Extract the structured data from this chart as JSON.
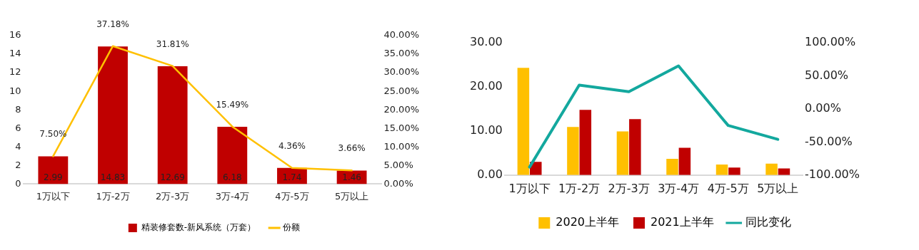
{
  "chart_data": [
    {
      "type": "bar",
      "categories": [
        "1万以下",
        "1万-2万",
        "2万-3万",
        "3万-4万",
        "4万-5万",
        "5万以上"
      ],
      "series": [
        {
          "name": "精装修套数-新风系统（万套）",
          "color": "#c00000",
          "values": [
            2.99,
            14.83,
            12.69,
            6.18,
            1.74,
            1.46
          ],
          "value_labels": [
            "2.99",
            "14.83",
            "12.69",
            "6.18",
            "1.74",
            "1.46"
          ]
        },
        {
          "name": "份额",
          "type": "line",
          "axis": "y2",
          "color": "#ffc000",
          "values": [
            7.5,
            37.18,
            31.81,
            15.49,
            4.36,
            3.66
          ],
          "value_labels": [
            "7.50%",
            "37.18%",
            "31.81%",
            "15.49%",
            "4.36%",
            "3.66%"
          ]
        }
      ],
      "ylim": [
        0,
        16
      ],
      "yticks": [
        0,
        2,
        4,
        6,
        8,
        10,
        12,
        14,
        16
      ],
      "y2lim": [
        0,
        40
      ],
      "y2ticks": [
        {
          "value": 0,
          "label": "0.00%"
        },
        {
          "value": 5,
          "label": "5.00%"
        },
        {
          "value": 10,
          "label": "10.00%"
        },
        {
          "value": 15,
          "label": "15.00%"
        },
        {
          "value": 20,
          "label": "20.00%"
        },
        {
          "value": 25,
          "label": "25.00%"
        },
        {
          "value": 30,
          "label": "30.00%"
        },
        {
          "value": 35,
          "label": "35.00%"
        },
        {
          "value": 40,
          "label": "40.00%"
        }
      ],
      "grid": false,
      "legend": "bottom",
      "marker": "none"
    },
    {
      "type": "bar",
      "categories": [
        "1万以下",
        "1万-2万",
        "2万-3万",
        "3万-4万",
        "4万-5万",
        "5万以上"
      ],
      "series": [
        {
          "name": "2020上半年",
          "color": "#ffc000",
          "values": [
            24.3,
            10.9,
            9.9,
            3.7,
            2.4,
            2.6
          ]
        },
        {
          "name": "2021上半年",
          "color": "#c00000",
          "values": [
            3.0,
            14.8,
            12.7,
            6.2,
            1.7,
            1.5
          ]
        },
        {
          "name": "同比变化",
          "type": "line",
          "axis": "y2",
          "color": "#13a89e",
          "values": [
            -88,
            36,
            26,
            65,
            -25,
            -46
          ]
        }
      ],
      "ylim": [
        0,
        30
      ],
      "yticks": [
        {
          "value": 0,
          "label": "0.00"
        },
        {
          "value": 10,
          "label": "10.00"
        },
        {
          "value": 20,
          "label": "20.00"
        },
        {
          "value": 30,
          "label": "30.00"
        }
      ],
      "y2lim": [
        -100,
        100
      ],
      "y2ticks": [
        {
          "value": -100,
          "label": "-100.00%"
        },
        {
          "value": -50,
          "label": "-50.00%"
        },
        {
          "value": 0,
          "label": "0.00%"
        },
        {
          "value": 50,
          "label": "50.00%"
        },
        {
          "value": 100,
          "label": "100.00%"
        }
      ],
      "grid": false,
      "legend": "bottom",
      "marker": "none"
    }
  ]
}
